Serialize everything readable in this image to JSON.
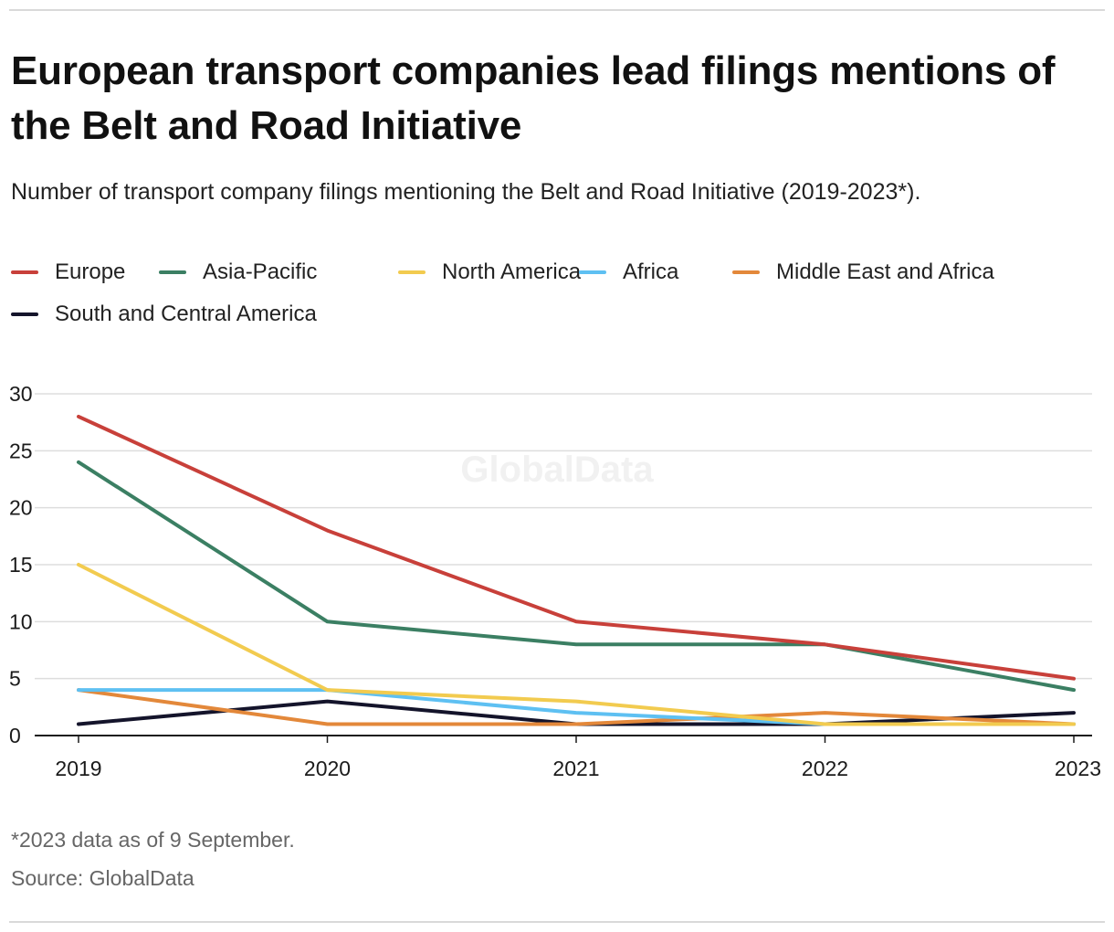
{
  "header": {
    "title": "European transport companies lead filings mentions of the Belt and Road Initiative",
    "subtitle": "Number of transport company filings mentioning the Belt and Road Initiative (2019-2023*)."
  },
  "footer": {
    "footnote": "*2023 data as of 9 September.",
    "source": "Source: GlobalData"
  },
  "watermark": "GlobalData",
  "chart_data": {
    "type": "line",
    "title": "European transport companies lead filings mentions of the Belt and Road Initiative",
    "subtitle": "Number of transport company filings mentioning the Belt and Road Initiative (2019-2023*).",
    "x": [
      "2019",
      "2020",
      "2021",
      "2022",
      "2023"
    ],
    "ylim": [
      0,
      30
    ],
    "yticks": [
      0,
      5,
      10,
      15,
      20,
      25,
      30
    ],
    "grid": true,
    "legend_position": "top",
    "series": [
      {
        "name": "Europe",
        "color": "#c8403a",
        "values": [
          28,
          18,
          10,
          8,
          5
        ]
      },
      {
        "name": "Asia-Pacific",
        "color": "#3b7f63",
        "values": [
          24,
          10,
          8,
          8,
          4
        ]
      },
      {
        "name": "North America",
        "color": "#f2cb4f",
        "values": [
          15,
          4,
          3,
          1,
          1
        ]
      },
      {
        "name": "Africa",
        "color": "#5ec0f2",
        "values": [
          4,
          4,
          2,
          1,
          1
        ]
      },
      {
        "name": "Middle East and Africa",
        "color": "#e3883a",
        "values": [
          4,
          1,
          1,
          2,
          1
        ]
      },
      {
        "name": "South and Central America",
        "color": "#14142b",
        "values": [
          1,
          3,
          1,
          1,
          2
        ]
      }
    ]
  }
}
